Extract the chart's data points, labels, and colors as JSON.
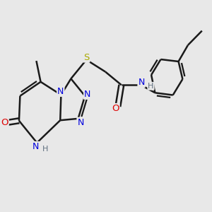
{
  "bg_color": "#e8e8e8",
  "colors": {
    "bond": "#1a1a1a",
    "N": "#0000dd",
    "O": "#dd0000",
    "S": "#aaaa00",
    "H": "#607080",
    "C": "#1a1a1a"
  },
  "bond_lw": 1.8,
  "dbo": 0.013,
  "fs": 9.0
}
